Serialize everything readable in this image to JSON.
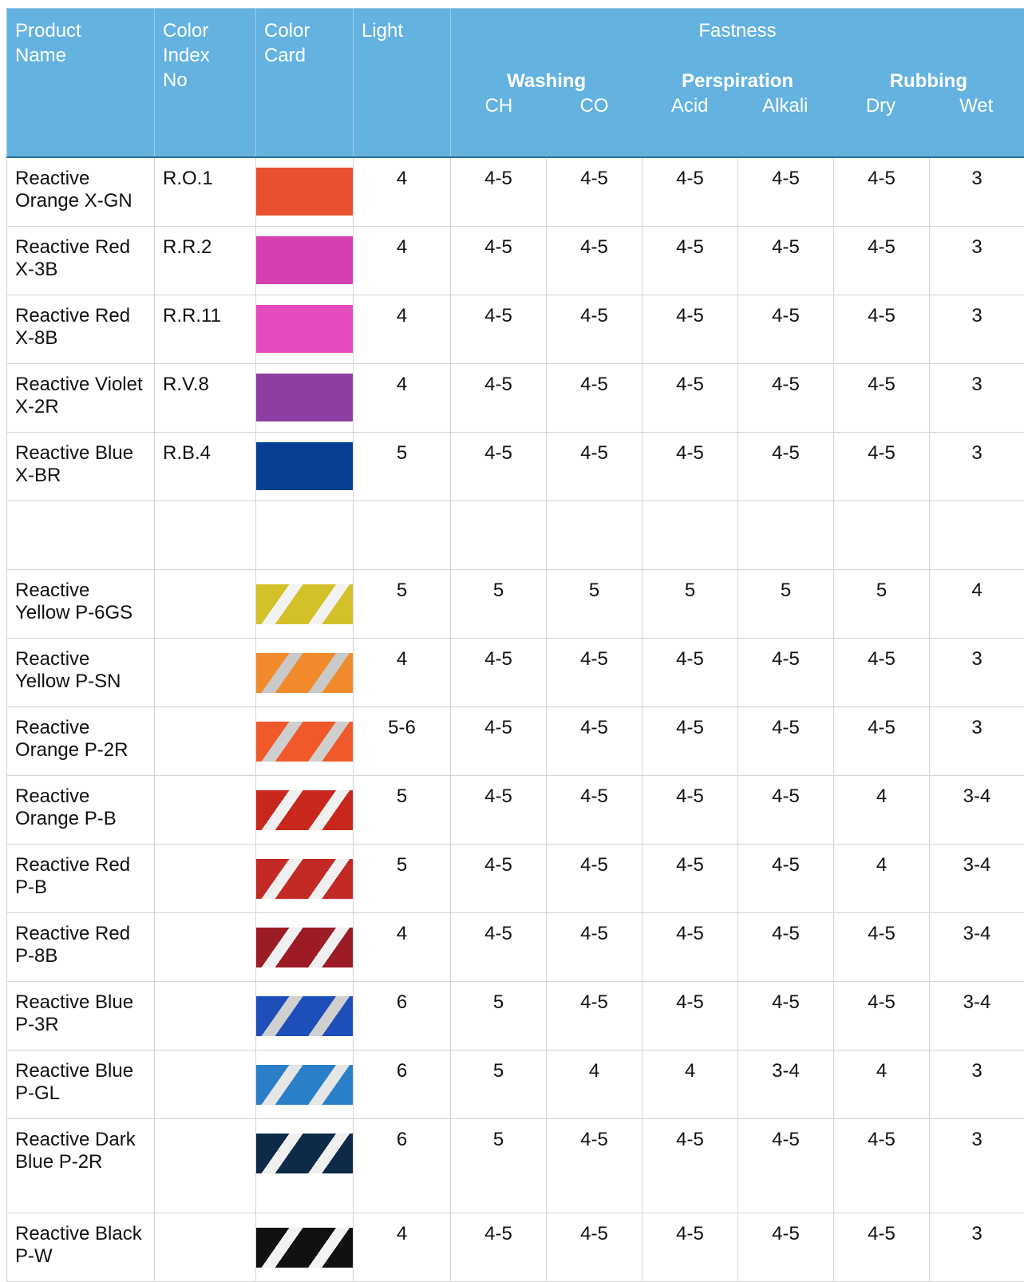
{
  "header": {
    "product_name": "Product Name",
    "color_index": "Color Index No",
    "color_card": "Color Card",
    "light": "Light",
    "fastness": "Fastness",
    "washing": "Washing",
    "ch": "CH",
    "co": "CO",
    "perspiration": "Perspiration",
    "acid": "Acid",
    "alkali": "Alkali",
    "rubbing": "Rubbing",
    "dry": "Dry",
    "wet": "Wet"
  },
  "groups": [
    {
      "rows": [
        {
          "product": "Reactive Orange X-GN",
          "color_index": "R.O.1",
          "light": "4",
          "ch": "4-5",
          "co": "4-5",
          "acid": "4-5",
          "alkali": "4-5",
          "dry": "4-5",
          "wet": "3"
        },
        {
          "product": "Reactive Red X-3B",
          "color_index": "R.R.2",
          "light": "4",
          "ch": "4-5",
          "co": "4-5",
          "acid": "4-5",
          "alkali": "4-5",
          "dry": "4-5",
          "wet": "3"
        },
        {
          "product": "Reactive Red X-8B",
          "color_index": "R.R.11",
          "light": "4",
          "ch": "4-5",
          "co": "4-5",
          "acid": "4-5",
          "alkali": "4-5",
          "dry": "4-5",
          "wet": "3"
        },
        {
          "product": "Reactive Violet X-2R",
          "color_index": "R.V.8",
          "light": "4",
          "ch": "4-5",
          "co": "4-5",
          "acid": "4-5",
          "alkali": "4-5",
          "dry": "4-5",
          "wet": "3"
        },
        {
          "product": "Reactive Blue X-BR",
          "color_index": "R.B.4",
          "light": "5",
          "ch": "4-5",
          "co": "4-5",
          "acid": "4-5",
          "alkali": "4-5",
          "dry": "4-5",
          "wet": "3"
        }
      ]
    },
    {
      "rows": [
        {
          "product": "Reactive Yellow P-6GS",
          "light": "5",
          "ch": "5",
          "co": "5",
          "acid": "5",
          "alkali": "5",
          "dry": "5",
          "wet": "4"
        },
        {
          "product": "Reactive Yellow P-SN",
          "light": "4",
          "ch": "4-5",
          "co": "4-5",
          "acid": "4-5",
          "alkali": "4-5",
          "dry": "4-5",
          "wet": "3"
        },
        {
          "product": "Reactive Orange P-2R",
          "light": "5-6",
          "ch": "4-5",
          "co": "4-5",
          "acid": "4-5",
          "alkali": "4-5",
          "dry": "4-5",
          "wet": "3"
        },
        {
          "product": "Reactive Orange P-B",
          "light": "5",
          "ch": "4-5",
          "co": "4-5",
          "acid": "4-5",
          "alkali": "4-5",
          "dry": "4",
          "wet": "3-4"
        },
        {
          "product": "Reactive Red P-B",
          "light": "5",
          "ch": "4-5",
          "co": "4-5",
          "acid": "4-5",
          "alkali": "4-5",
          "dry": "4",
          "wet": "3-4"
        },
        {
          "product": "Reactive Red P-8B",
          "light": "4",
          "ch": "4-5",
          "co": "4-5",
          "acid": "4-5",
          "alkali": "4-5",
          "dry": "4-5",
          "wet": "3-4"
        },
        {
          "product": "Reactive Blue P-3R",
          "light": "6",
          "ch": "5",
          "co": "4-5",
          "acid": "4-5",
          "alkali": "4-5",
          "dry": "4-5",
          "wet": "3-4"
        },
        {
          "product": "Reactive Blue P-GL",
          "light": "6",
          "ch": "5",
          "co": "4",
          "acid": "4",
          "alkali": "3-4",
          "dry": "4",
          "wet": "3"
        },
        {
          "product": "Reactive Dark Blue P-2R",
          "light": "6",
          "ch": "5",
          "co": "4-5",
          "acid": "4-5",
          "alkali": "4-5",
          "dry": "4-5",
          "wet": "3"
        },
        {
          "product": "Reactive Black P-W",
          "light": "4",
          "ch": "4-5",
          "co": "4-5",
          "acid": "4-5",
          "alkali": "4-5",
          "dry": "4-5",
          "wet": "3"
        }
      ]
    }
  ]
}
